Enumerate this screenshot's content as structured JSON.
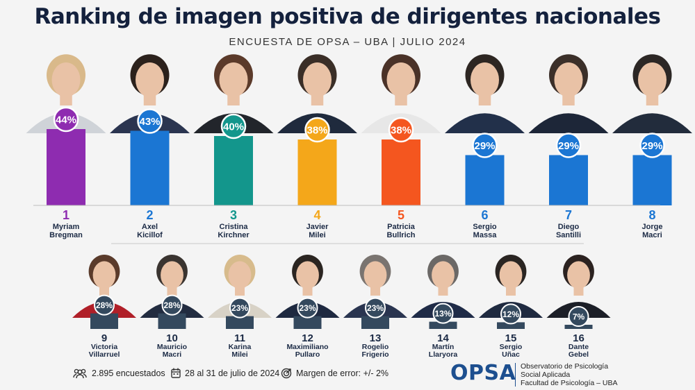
{
  "header": {
    "title": "Ranking de imagen positiva de dirigentes nacionales",
    "subtitle": "ENCUESTA DE OPSA – UBA | JULIO 2024"
  },
  "chart_data": {
    "type": "bar",
    "title": "Ranking de imagen positiva de dirigentes nacionales",
    "ylim": [
      0,
      44
    ],
    "unit": "%",
    "top_row": [
      {
        "rank": "1",
        "first": "Myriam",
        "last": "Bregman",
        "value": 44,
        "label": "44%",
        "color": "#8e2cb0"
      },
      {
        "rank": "2",
        "first": "Axel",
        "last": "Kicillof",
        "value": 43,
        "label": "43%",
        "color": "#1b76d3"
      },
      {
        "rank": "3",
        "first": "Cristina",
        "last": "Kirchner",
        "value": 40,
        "label": "40%",
        "color": "#13968c"
      },
      {
        "rank": "4",
        "first": "Javier",
        "last": "Milei",
        "value": 38,
        "label": "38%",
        "color": "#f4a71a"
      },
      {
        "rank": "5",
        "first": "Patricia",
        "last": "Bullrich",
        "value": 38,
        "label": "38%",
        "color": "#f4561f"
      },
      {
        "rank": "6",
        "first": "Sergio",
        "last": "Massa",
        "value": 29,
        "label": "29%",
        "color": "#1b76d3"
      },
      {
        "rank": "7",
        "first": "Diego",
        "last": "Santilli",
        "value": 29,
        "label": "29%",
        "color": "#1b76d3"
      },
      {
        "rank": "8",
        "first": "Jorge",
        "last": "Macri",
        "value": 29,
        "label": "29%",
        "color": "#1b76d3"
      }
    ],
    "bottom_row": [
      {
        "rank": "9",
        "first": "Victoria",
        "last": "Villarruel",
        "value": 28,
        "label": "28%",
        "color": "#34495e"
      },
      {
        "rank": "10",
        "first": "Mauricio",
        "last": "Macri",
        "value": 28,
        "label": "28%",
        "color": "#34495e"
      },
      {
        "rank": "11",
        "first": "Karina",
        "last": "Milei",
        "value": 23,
        "label": "23%",
        "color": "#34495e"
      },
      {
        "rank": "12",
        "first": "Maximiliano",
        "last": "Pullaro",
        "value": 23,
        "label": "23%",
        "color": "#34495e"
      },
      {
        "rank": "13",
        "first": "Rogelio",
        "last": "Frigerio",
        "value": 23,
        "label": "23%",
        "color": "#34495e"
      },
      {
        "rank": "14",
        "first": "Martín",
        "last": "Llaryora",
        "value": 13,
        "label": "13%",
        "color": "#34495e"
      },
      {
        "rank": "15",
        "first": "Sergio",
        "last": "Uñac",
        "value": 12,
        "label": "12%",
        "color": "#34495e"
      },
      {
        "rank": "16",
        "first": "Dante",
        "last": "Gebel",
        "value": 7,
        "label": "7%",
        "color": "#34495e"
      }
    ]
  },
  "footer": {
    "respondents": "2.895 encuestados",
    "dates": "28 al 31 de julio de 2024",
    "margin": "Margen de error: +/- 2%",
    "org_logo": "OPSA",
    "org_line1": "Observatorio de Psicología",
    "org_line2": "Social Aplicada",
    "org_line3": "Facultad de Psicología – UBA"
  },
  "icons": {
    "respondents": "people-icon",
    "dates": "calendar-icon",
    "margin": "target-icon"
  }
}
